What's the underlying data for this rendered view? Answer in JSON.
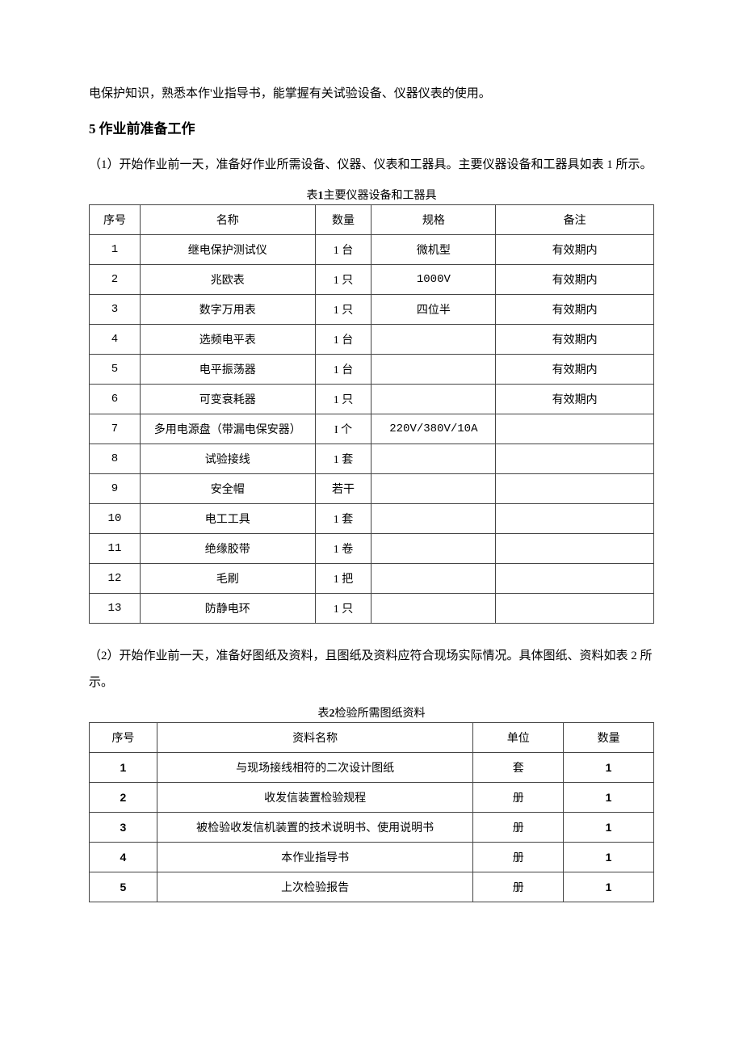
{
  "intro_line": "电保护知识，熟悉本作'业指导书，能掌握有关试验设备、仪器仪表的使用。",
  "heading5_num": "5",
  "heading5_text": "作业前准备工作",
  "para_5_1": "（1）开始作业前一天，准备好作业所需设备、仪器、仪表和工器具。主要仪器设备和工器具如表 1 所示。",
  "table1_caption_prefix": "表",
  "table1_caption_num": "1",
  "table1_caption_suffix": "主要仪器设备和工器具",
  "table1": {
    "headers": [
      "序号",
      "名称",
      "数量",
      "规格",
      "备注"
    ],
    "rows": [
      [
        "1",
        "继电保护测试仪",
        "1 台",
        "微机型",
        "有效期内"
      ],
      [
        "2",
        "兆欧表",
        "1 只",
        "1000V",
        "有效期内"
      ],
      [
        "3",
        "数字万用表",
        "1 只",
        "四位半",
        "有效期内"
      ],
      [
        "4",
        "选频电平表",
        "1 台",
        "",
        "有效期内"
      ],
      [
        "5",
        "电平振荡器",
        "1 台",
        "",
        "有效期内"
      ],
      [
        "6",
        "可变衰耗器",
        "1 只",
        "",
        "有效期内"
      ],
      [
        "7",
        "多用电源盘（带漏电保安器）",
        "I 个",
        "220V/380V/10A",
        ""
      ],
      [
        "8",
        "试验接线",
        "1 套",
        "",
        ""
      ],
      [
        "9",
        "安全帽",
        "若干",
        "",
        ""
      ],
      [
        "10",
        "电工工具",
        "1 套",
        "",
        ""
      ],
      [
        "11",
        "绝缘胶带",
        "1 卷",
        "",
        ""
      ],
      [
        "12",
        "毛刷",
        "1 把",
        "",
        ""
      ],
      [
        "13",
        "防静电环",
        "1 只",
        "",
        ""
      ]
    ]
  },
  "para_5_2": "（2）开始作业前一天，准备好图纸及资料，且图纸及资料应符合现场实际情况。具体图纸、资料如表 2 所示。",
  "table2_caption_prefix": "表",
  "table2_caption_num": "2",
  "table2_caption_suffix": "检验所需图纸资料",
  "table2": {
    "headers": [
      "序号",
      "资料名称",
      "单位",
      "数量"
    ],
    "rows": [
      [
        "1",
        "与现场接线相符的二次设计图纸",
        "套",
        "1"
      ],
      [
        "2",
        "收发信装置检验规程",
        "册",
        "1"
      ],
      [
        "3",
        "被检验收发信机装置的技术说明书、使用说明书",
        "册",
        "1"
      ],
      [
        "4",
        "本作业指导书",
        "册",
        "1"
      ],
      [
        "5",
        "上次检验报告",
        "册",
        "1"
      ]
    ]
  }
}
